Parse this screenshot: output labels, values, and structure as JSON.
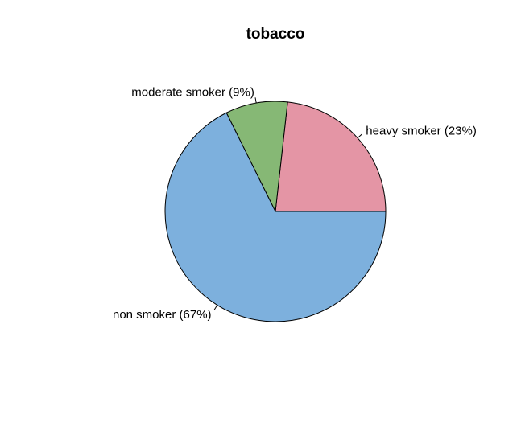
{
  "chart_data": {
    "type": "pie",
    "title": "tobacco",
    "slices": [
      {
        "label": "heavy smoker (23%)",
        "value": 23,
        "color": "#E495A5"
      },
      {
        "label": "moderate smoker (9%)",
        "value": 9,
        "color": "#86B875"
      },
      {
        "label": "non smoker (67%)",
        "value": 67,
        "color": "#7DB0DD"
      }
    ],
    "start_angle_deg": 0,
    "direction": "counterclockwise"
  }
}
